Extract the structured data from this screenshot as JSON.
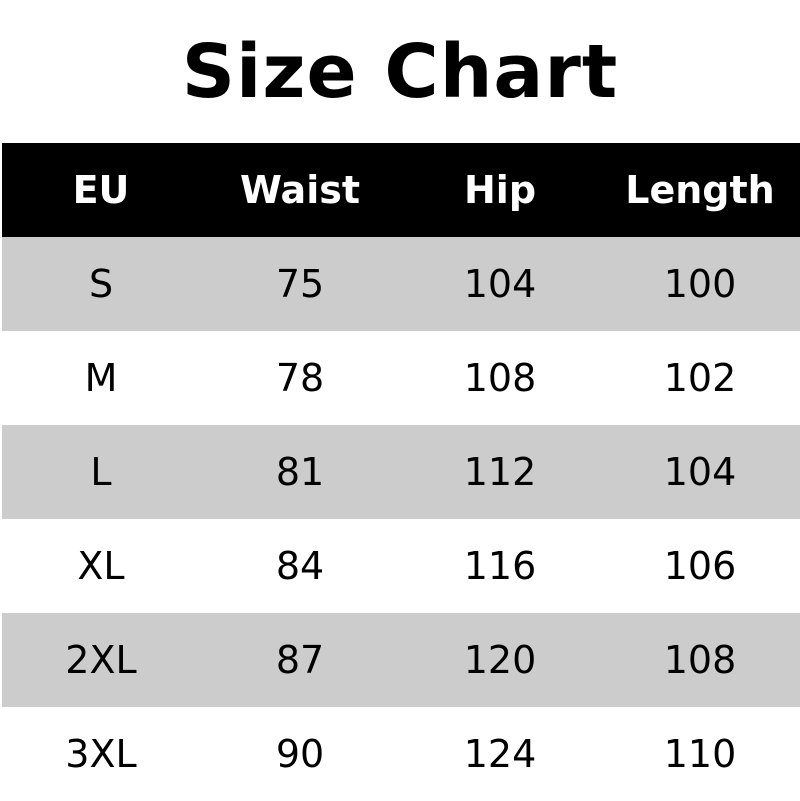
{
  "title": "Size Chart",
  "headers": [
    "EU",
    "Waist",
    "Hip",
    "Length"
  ],
  "rows": [
    [
      "S",
      "75",
      "104",
      "100"
    ],
    [
      "M",
      "78",
      "108",
      "102"
    ],
    [
      "L",
      "81",
      "112",
      "104"
    ],
    [
      "XL",
      "84",
      "116",
      "106"
    ],
    [
      "2XL",
      "87",
      "120",
      "108"
    ],
    [
      "3XL",
      "90",
      "124",
      "110"
    ]
  ],
  "colors": {
    "header_bg": "#000000",
    "header_text": "#ffffff",
    "stripe": "#cccccc"
  }
}
